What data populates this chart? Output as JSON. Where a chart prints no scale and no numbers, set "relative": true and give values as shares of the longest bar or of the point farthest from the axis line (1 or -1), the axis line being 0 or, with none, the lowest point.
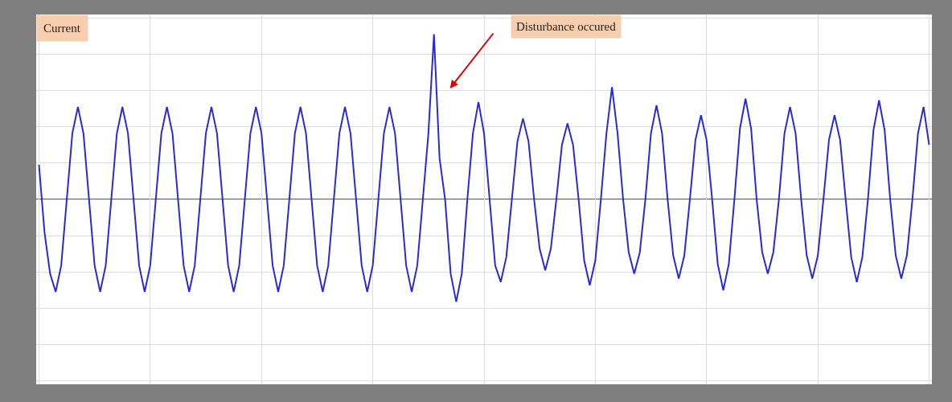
{
  "chart_data": {
    "type": "line",
    "relative": true,
    "tick_labels": false,
    "grid": true,
    "marker": "none",
    "line_style": "solid",
    "ref_lines": [
      {
        "axis": "y",
        "value": 0,
        "color": "#1f77c8"
      }
    ],
    "annotations": [
      "Current",
      "Disturbance occured"
    ],
    "categories": [
      null,
      null,
      null,
      null,
      null,
      null,
      null,
      null,
      null,
      null,
      null,
      null,
      null,
      null,
      null,
      null,
      null,
      null,
      null,
      null,
      null,
      null,
      null,
      null,
      null,
      null,
      null,
      null,
      null,
      null,
      null,
      null,
      null,
      null,
      null,
      null,
      null,
      null,
      null,
      null,
      null,
      null,
      null,
      null,
      null,
      null,
      null,
      null,
      null,
      null,
      null,
      null,
      null,
      null,
      null,
      null,
      null,
      null,
      null,
      null,
      null,
      null,
      null,
      null,
      null,
      null,
      null,
      null,
      null,
      null,
      null,
      null,
      null,
      null,
      null,
      null,
      null,
      null,
      null,
      null,
      null,
      null,
      null,
      null,
      null,
      null,
      null,
      null,
      null,
      null,
      null,
      null,
      null,
      null,
      null,
      null,
      null,
      null,
      null,
      null,
      null,
      null,
      null,
      null,
      null,
      null,
      null,
      null,
      null,
      null,
      null,
      null,
      null,
      null,
      null,
      null,
      null,
      null,
      null,
      null,
      null,
      null,
      null,
      null,
      null,
      null,
      null,
      null,
      null,
      null,
      null,
      null,
      null,
      null,
      null,
      null,
      null,
      null,
      null,
      null,
      null,
      null,
      null,
      null,
      null,
      null,
      null,
      null,
      null,
      null,
      null,
      null,
      null,
      null,
      null,
      null,
      null,
      null,
      null,
      null,
      null
    ],
    "series": [
      {
        "color": "#2a2ad8",
        "values": [
          0.21,
          -0.2,
          -0.45,
          -0.56,
          -0.4,
          0,
          0.4,
          0.56,
          0.4,
          0,
          -0.4,
          -0.56,
          -0.4,
          0,
          0.4,
          0.56,
          0.4,
          0,
          -0.4,
          -0.56,
          -0.4,
          0,
          0.4,
          0.56,
          0.4,
          0,
          -0.4,
          -0.56,
          -0.4,
          0,
          0.4,
          0.56,
          0.4,
          0,
          -0.4,
          -0.56,
          -0.4,
          0,
          0.4,
          0.56,
          0.4,
          0,
          -0.4,
          -0.56,
          -0.4,
          0,
          0.4,
          0.56,
          0.4,
          0,
          -0.4,
          -0.56,
          -0.4,
          0,
          0.4,
          0.56,
          0.4,
          0,
          -0.4,
          -0.56,
          -0.4,
          0,
          0.4,
          0.56,
          0.4,
          0,
          -0.4,
          -0.56,
          -0.4,
          0,
          0.4,
          1.0,
          0.25,
          0,
          -0.45,
          -0.62,
          -0.45,
          0,
          0.4,
          0.59,
          0.4,
          0,
          -0.4,
          -0.5,
          -0.35,
          0,
          0.35,
          0.49,
          0.35,
          0,
          -0.3,
          -0.43,
          -0.3,
          0,
          0.33,
          0.46,
          0.33,
          0,
          -0.37,
          -0.52,
          -0.37,
          0,
          0.4,
          0.68,
          0.4,
          0,
          -0.32,
          -0.45,
          -0.32,
          0,
          0.4,
          0.57,
          0.4,
          0,
          -0.34,
          -0.48,
          -0.34,
          0,
          0.36,
          0.51,
          0.36,
          0,
          -0.39,
          -0.55,
          -0.39,
          0,
          0.43,
          0.61,
          0.43,
          0,
          -0.32,
          -0.45,
          -0.32,
          0,
          0.4,
          0.56,
          0.4,
          0,
          -0.34,
          -0.48,
          -0.34,
          0,
          0.36,
          0.51,
          0.36,
          0,
          -0.35,
          -0.5,
          -0.35,
          0,
          0.42,
          0.6,
          0.42,
          0,
          -0.34,
          -0.48,
          -0.34,
          0,
          0.4,
          0.56,
          0.33
        ]
      }
    ]
  }
}
